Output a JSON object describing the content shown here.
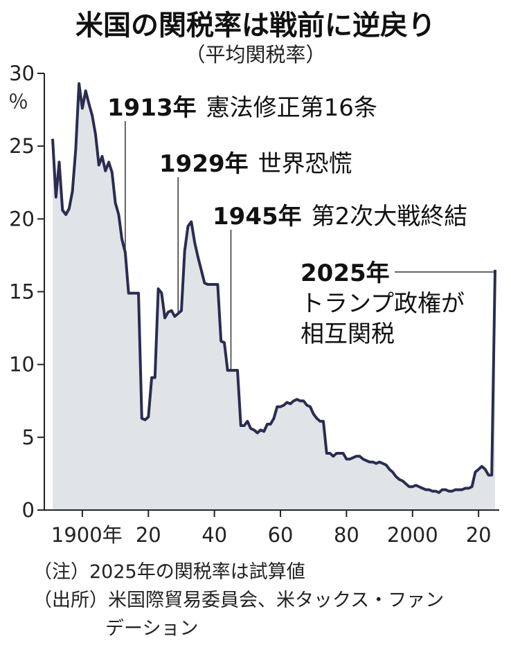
{
  "chart_data": {
    "type": "area",
    "title": "米国の関税率は戦前に逆戻り",
    "subtitle": "（平均関税率）",
    "ylabel": "％",
    "ylim": [
      0,
      30
    ],
    "xlim": [
      1891,
      2025
    ],
    "yticks": [
      0,
      5,
      10,
      15,
      20,
      25,
      30
    ],
    "xticks": [
      {
        "value": 1900,
        "label": "1900年"
      },
      {
        "value": 1920,
        "label": "20"
      },
      {
        "value": 1940,
        "label": "40"
      },
      {
        "value": 1960,
        "label": "60"
      },
      {
        "value": 1980,
        "label": "80"
      },
      {
        "value": 2000,
        "label": "2000"
      },
      {
        "value": 2020,
        "label": "20"
      }
    ],
    "grid": false,
    "points": [
      {
        "x": 1891,
        "y": 25.5
      },
      {
        "x": 1892,
        "y": 21.5
      },
      {
        "x": 1893,
        "y": 23.9
      },
      {
        "x": 1894,
        "y": 20.6
      },
      {
        "x": 1895,
        "y": 20.3
      },
      {
        "x": 1896,
        "y": 20.7
      },
      {
        "x": 1897,
        "y": 21.9
      },
      {
        "x": 1898,
        "y": 24.8
      },
      {
        "x": 1899,
        "y": 29.3
      },
      {
        "x": 1900,
        "y": 27.6
      },
      {
        "x": 1901,
        "y": 28.8
      },
      {
        "x": 1902,
        "y": 27.9
      },
      {
        "x": 1903,
        "y": 27.1
      },
      {
        "x": 1904,
        "y": 25.8
      },
      {
        "x": 1905,
        "y": 23.7
      },
      {
        "x": 1906,
        "y": 24.3
      },
      {
        "x": 1907,
        "y": 23.3
      },
      {
        "x": 1908,
        "y": 23.9
      },
      {
        "x": 1909,
        "y": 23.2
      },
      {
        "x": 1910,
        "y": 21.1
      },
      {
        "x": 1911,
        "y": 20.3
      },
      {
        "x": 1912,
        "y": 18.6
      },
      {
        "x": 1913,
        "y": 17.7
      },
      {
        "x": 1914,
        "y": 14.9
      },
      {
        "x": 1915,
        "y": 14.9
      },
      {
        "x": 1916,
        "y": 14.9
      },
      {
        "x": 1917,
        "y": 14.9
      },
      {
        "x": 1918,
        "y": 6.3
      },
      {
        "x": 1919,
        "y": 6.2
      },
      {
        "x": 1920,
        "y": 6.4
      },
      {
        "x": 1921,
        "y": 9.1
      },
      {
        "x": 1922,
        "y": 9.1
      },
      {
        "x": 1923,
        "y": 15.2
      },
      {
        "x": 1924,
        "y": 14.9
      },
      {
        "x": 1925,
        "y": 13.2
      },
      {
        "x": 1926,
        "y": 13.6
      },
      {
        "x": 1927,
        "y": 13.7
      },
      {
        "x": 1928,
        "y": 13.3
      },
      {
        "x": 1929,
        "y": 13.5
      },
      {
        "x": 1930,
        "y": 13.7
      },
      {
        "x": 1931,
        "y": 17.8
      },
      {
        "x": 1932,
        "y": 19.5
      },
      {
        "x": 1933,
        "y": 19.8
      },
      {
        "x": 1934,
        "y": 18.4
      },
      {
        "x": 1935,
        "y": 17.4
      },
      {
        "x": 1936,
        "y": 16.5
      },
      {
        "x": 1937,
        "y": 15.6
      },
      {
        "x": 1938,
        "y": 15.5
      },
      {
        "x": 1939,
        "y": 15.5
      },
      {
        "x": 1940,
        "y": 15.5
      },
      {
        "x": 1941,
        "y": 15.5
      },
      {
        "x": 1942,
        "y": 11.6
      },
      {
        "x": 1943,
        "y": 11.5
      },
      {
        "x": 1944,
        "y": 9.6
      },
      {
        "x": 1945,
        "y": 9.6
      },
      {
        "x": 1946,
        "y": 9.6
      },
      {
        "x": 1947,
        "y": 9.6
      },
      {
        "x": 1948,
        "y": 5.8
      },
      {
        "x": 1949,
        "y": 5.8
      },
      {
        "x": 1950,
        "y": 6.1
      },
      {
        "x": 1951,
        "y": 5.6
      },
      {
        "x": 1952,
        "y": 5.5
      },
      {
        "x": 1953,
        "y": 5.3
      },
      {
        "x": 1954,
        "y": 5.5
      },
      {
        "x": 1955,
        "y": 5.4
      },
      {
        "x": 1956,
        "y": 5.9
      },
      {
        "x": 1957,
        "y": 5.9
      },
      {
        "x": 1958,
        "y": 6.3
      },
      {
        "x": 1959,
        "y": 7.1
      },
      {
        "x": 1960,
        "y": 7.1
      },
      {
        "x": 1961,
        "y": 7.2
      },
      {
        "x": 1962,
        "y": 7.4
      },
      {
        "x": 1963,
        "y": 7.3
      },
      {
        "x": 1964,
        "y": 7.5
      },
      {
        "x": 1965,
        "y": 7.6
      },
      {
        "x": 1966,
        "y": 7.5
      },
      {
        "x": 1967,
        "y": 7.5
      },
      {
        "x": 1968,
        "y": 7.2
      },
      {
        "x": 1969,
        "y": 7.1
      },
      {
        "x": 1970,
        "y": 6.6
      },
      {
        "x": 1971,
        "y": 6.3
      },
      {
        "x": 1972,
        "y": 6.1
      },
      {
        "x": 1973,
        "y": 6.1
      },
      {
        "x": 1974,
        "y": 3.9
      },
      {
        "x": 1975,
        "y": 3.9
      },
      {
        "x": 1976,
        "y": 3.7
      },
      {
        "x": 1977,
        "y": 3.9
      },
      {
        "x": 1978,
        "y": 3.9
      },
      {
        "x": 1979,
        "y": 3.9
      },
      {
        "x": 1980,
        "y": 3.5
      },
      {
        "x": 1981,
        "y": 3.5
      },
      {
        "x": 1982,
        "y": 3.6
      },
      {
        "x": 1983,
        "y": 3.7
      },
      {
        "x": 1984,
        "y": 3.7
      },
      {
        "x": 1985,
        "y": 3.5
      },
      {
        "x": 1986,
        "y": 3.4
      },
      {
        "x": 1987,
        "y": 3.3
      },
      {
        "x": 1988,
        "y": 3.3
      },
      {
        "x": 1989,
        "y": 3.2
      },
      {
        "x": 1990,
        "y": 3.3
      },
      {
        "x": 1991,
        "y": 3.2
      },
      {
        "x": 1992,
        "y": 3.1
      },
      {
        "x": 1993,
        "y": 2.8
      },
      {
        "x": 1994,
        "y": 2.6
      },
      {
        "x": 1995,
        "y": 2.3
      },
      {
        "x": 1996,
        "y": 2.1
      },
      {
        "x": 1997,
        "y": 2.0
      },
      {
        "x": 1998,
        "y": 1.8
      },
      {
        "x": 1999,
        "y": 1.6
      },
      {
        "x": 2000,
        "y": 1.6
      },
      {
        "x": 2001,
        "y": 1.7
      },
      {
        "x": 2002,
        "y": 1.6
      },
      {
        "x": 2003,
        "y": 1.5
      },
      {
        "x": 2004,
        "y": 1.4
      },
      {
        "x": 2005,
        "y": 1.4
      },
      {
        "x": 2006,
        "y": 1.3
      },
      {
        "x": 2007,
        "y": 1.3
      },
      {
        "x": 2008,
        "y": 1.2
      },
      {
        "x": 2009,
        "y": 1.4
      },
      {
        "x": 2010,
        "y": 1.4
      },
      {
        "x": 2011,
        "y": 1.3
      },
      {
        "x": 2012,
        "y": 1.3
      },
      {
        "x": 2013,
        "y": 1.4
      },
      {
        "x": 2014,
        "y": 1.4
      },
      {
        "x": 2015,
        "y": 1.4
      },
      {
        "x": 2016,
        "y": 1.5
      },
      {
        "x": 2017,
        "y": 1.5
      },
      {
        "x": 2018,
        "y": 1.6
      },
      {
        "x": 2019,
        "y": 2.6
      },
      {
        "x": 2020,
        "y": 2.8
      },
      {
        "x": 2021,
        "y": 3.0
      },
      {
        "x": 2022,
        "y": 2.8
      },
      {
        "x": 2023,
        "y": 2.4
      },
      {
        "x": 2024,
        "y": 2.4
      },
      {
        "x": 2025,
        "y": 16.5
      }
    ],
    "annotations": [
      {
        "year": 1913,
        "y": 17.7,
        "bold": "1913年",
        "text": [
          "憲法修正第16条"
        ]
      },
      {
        "year": 1929,
        "y": 13.5,
        "bold": "1929年",
        "text": [
          "世界恐慌"
        ]
      },
      {
        "year": 1945,
        "y": 9.6,
        "bold": "1945年",
        "text": [
          "第2次大戦終結"
        ]
      },
      {
        "year": 2025,
        "y": 16.5,
        "bold": "2025年",
        "text": [
          "トランプ政権が",
          "相互関税"
        ]
      }
    ],
    "colors": {
      "line": "#2a2c50",
      "fill": "#e1e4e7",
      "axis": "#222222",
      "text": "#111111"
    }
  },
  "notes": [
    "（注）2025年の関税率は試算値",
    "（出所）米国際貿易委員会、米タックス・ファン",
    "デーション"
  ]
}
